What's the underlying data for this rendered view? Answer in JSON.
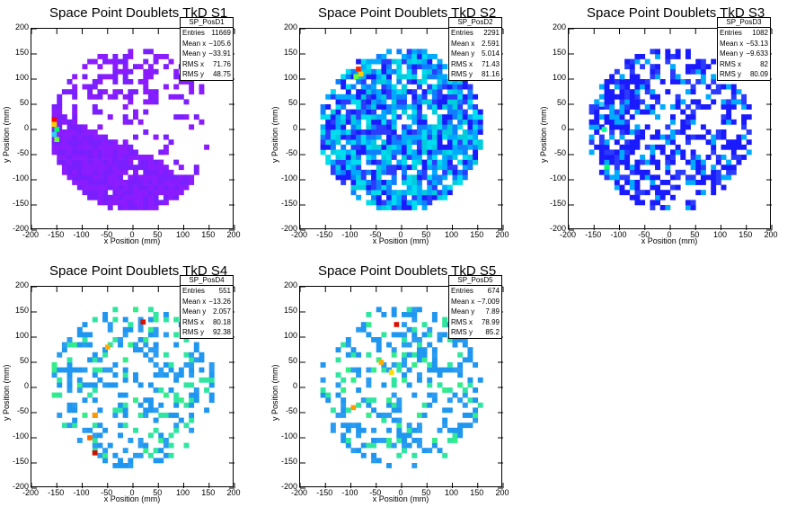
{
  "chart_data": [
    {
      "type": "heatmap",
      "title": "Space Point Doublets TkD S1",
      "xlabel": "x Position (mm)",
      "ylabel": "y Position (mm)",
      "xlim": [
        -200,
        200
      ],
      "ylim": [
        -200,
        200
      ],
      "xticks": [
        -200,
        -150,
        -100,
        -50,
        0,
        50,
        100,
        150,
        200
      ],
      "yticks": [
        -200,
        -150,
        -100,
        -50,
        0,
        50,
        100,
        150,
        200
      ],
      "stats": {
        "name": "SP_PosD1",
        "rows": [
          [
            "Entries",
            "11669"
          ],
          [
            "Mean x",
            "−105.6"
          ],
          [
            "Mean y",
            "−33.91"
          ],
          [
            "RMS x",
            "71.76"
          ],
          [
            "RMS y",
            "48.75"
          ]
        ]
      },
      "pattern": "lower-left dense band, sparse upper region, hot spots at left edge",
      "palette": [
        "#7a1fff",
        "#8b1cff"
      ],
      "hot": [
        [
          -155,
          20,
          "#ff0000"
        ],
        [
          -155,
          10,
          "#ffcc00"
        ],
        [
          -150,
          0,
          "#00ff66"
        ],
        [
          -155,
          -10,
          "#33ccff"
        ],
        [
          -150,
          -20,
          "#66ff33"
        ]
      ]
    },
    {
      "type": "heatmap",
      "title": "Space Point Doublets TkD S2",
      "xlabel": "x Position (mm)",
      "ylabel": "y Position (mm)",
      "xlim": [
        -200,
        200
      ],
      "ylim": [
        -200,
        200
      ],
      "xticks": [
        -200,
        -150,
        -100,
        -50,
        0,
        50,
        100,
        150,
        200
      ],
      "yticks": [
        -200,
        -150,
        -100,
        -50,
        0,
        50,
        100,
        150,
        200
      ],
      "stats": {
        "name": "SP_PosD2",
        "rows": [
          [
            "Entries",
            "2291"
          ],
          [
            "Mean x",
            "2.591"
          ],
          [
            "Mean y",
            "5.014"
          ],
          [
            "RMS x",
            "71.43"
          ],
          [
            "RMS y",
            "81.16"
          ]
        ]
      },
      "pattern": "full disk mostly filled",
      "palette": [
        "#1a1aff",
        "#2b3bff",
        "#0f7fff",
        "#00aaff",
        "#00ddee"
      ],
      "hot": [
        [
          -85,
          120,
          "#ff2200"
        ],
        [
          -80,
          110,
          "#ffcc00"
        ],
        [
          -90,
          105,
          "#66ff33"
        ]
      ]
    },
    {
      "type": "heatmap",
      "title": "Space Point Doublets TkD S3",
      "xlabel": "x Position (mm)",
      "ylabel": "y Position (mm)",
      "xlim": [
        -200,
        200
      ],
      "ylim": [
        -200,
        200
      ],
      "xticks": [
        -200,
        -150,
        -100,
        -50,
        0,
        50,
        100,
        150,
        200
      ],
      "yticks": [
        -200,
        -150,
        -100,
        -50,
        0,
        50,
        100,
        150,
        200
      ],
      "stats": {
        "name": "SP_PosD3",
        "rows": [
          [
            "Entries",
            "1082"
          ],
          [
            "Mean x",
            "−53.13"
          ],
          [
            "Mean y",
            "−9.633"
          ],
          [
            "RMS x",
            "82"
          ],
          [
            "RMS y",
            "80.09"
          ]
        ]
      },
      "pattern": "disk, denser on left, sparse on right",
      "palette": [
        "#1a1aff",
        "#2b3bff",
        "#1a1aff",
        "#00aaff"
      ],
      "hot": [
        [
          -130,
          0,
          "#00ff99"
        ],
        [
          -125,
          -75,
          "#00ff66"
        ],
        [
          -135,
          50,
          "#33ccff"
        ]
      ]
    },
    {
      "type": "heatmap",
      "title": "Space Point Doublets TkD S4",
      "xlabel": "x Position (mm)",
      "ylabel": "y Position (mm)",
      "xlim": [
        -200,
        200
      ],
      "ylim": [
        -200,
        200
      ],
      "xticks": [
        -200,
        -150,
        -100,
        -50,
        0,
        50,
        100,
        150,
        200
      ],
      "yticks": [
        -200,
        -150,
        -100,
        -50,
        0,
        50,
        100,
        150,
        200
      ],
      "stats": {
        "name": "SP_PosD4",
        "rows": [
          [
            "Entries",
            "551"
          ],
          [
            "Mean x",
            "−13.26"
          ],
          [
            "Mean y",
            "2.057"
          ],
          [
            "RMS x",
            "80.18"
          ],
          [
            "RMS y",
            "92.38"
          ]
        ]
      },
      "pattern": "sparse disk",
      "palette": [
        "#1f96f0",
        "#2a9cf2",
        "#1f96f0",
        "#2fe6a0"
      ],
      "hot": [
        [
          20,
          130,
          "#dd1100"
        ],
        [
          -50,
          80,
          "#ffaa00"
        ],
        [
          -75,
          -55,
          "#ff9900"
        ],
        [
          -85,
          -100,
          "#ff6600"
        ],
        [
          -75,
          -130,
          "#cc1100"
        ]
      ]
    },
    {
      "type": "heatmap",
      "title": "Space Point Doublets TkD S5",
      "xlabel": "x Position (mm)",
      "ylabel": "y Position (mm)",
      "xlim": [
        -200,
        200
      ],
      "ylim": [
        -200,
        200
      ],
      "xticks": [
        -200,
        -150,
        -100,
        -50,
        0,
        50,
        100,
        150,
        200
      ],
      "yticks": [
        -200,
        -150,
        -100,
        -50,
        0,
        50,
        100,
        150,
        200
      ],
      "stats": {
        "name": "SP_PosD5",
        "rows": [
          [
            "Entries",
            "674"
          ],
          [
            "Mean x",
            "−7.009"
          ],
          [
            "Mean y",
            "7.89"
          ],
          [
            "RMS x",
            "78.99"
          ],
          [
            "RMS y",
            "85.2"
          ]
        ]
      },
      "pattern": "sparse disk",
      "palette": [
        "#1f96f0",
        "#2a9cf2",
        "#1f96f0",
        "#2fe6a0"
      ],
      "hot": [
        [
          -10,
          125,
          "#dd1100"
        ],
        [
          -40,
          50,
          "#ffaa00"
        ],
        [
          -95,
          -40,
          "#ff9900"
        ],
        [
          115,
          105,
          "#cc1100"
        ],
        [
          -20,
          30,
          "#ffdd00"
        ]
      ]
    }
  ]
}
